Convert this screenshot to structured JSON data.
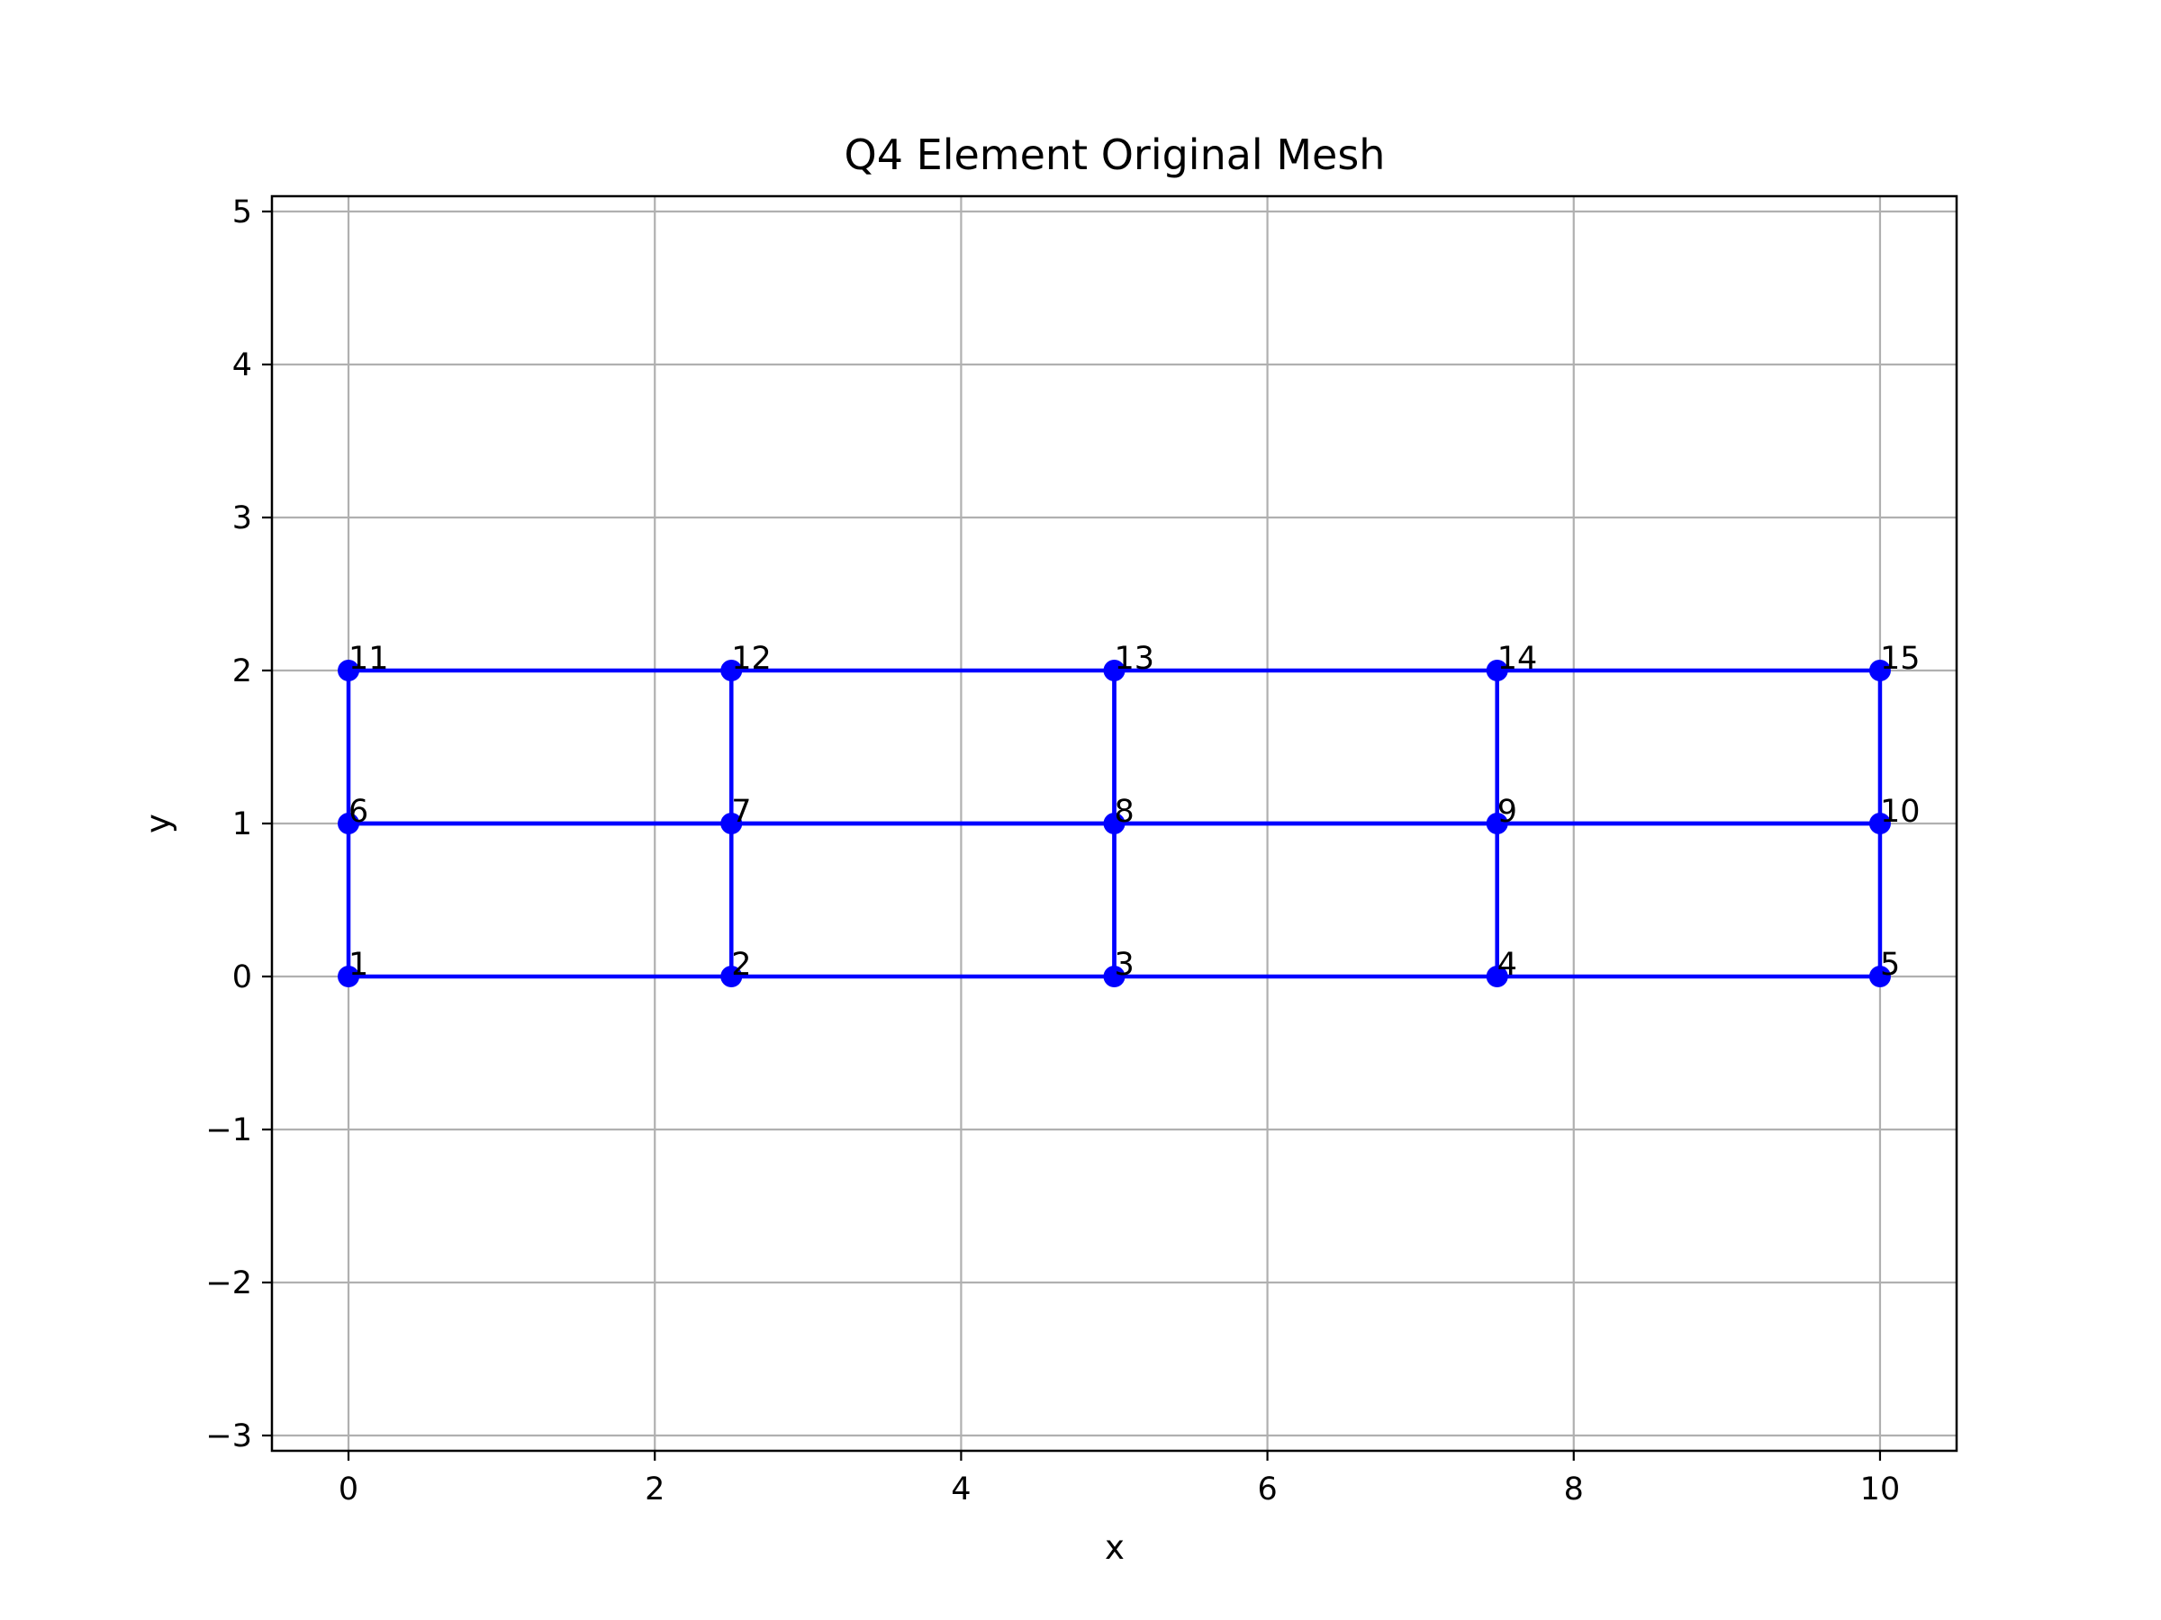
{
  "chart_data": {
    "type": "scatter",
    "title": "Q4 Element Original Mesh",
    "xlabel": "x",
    "ylabel": "y",
    "xlim": [
      -0.5,
      10.5
    ],
    "ylim": [
      -3.1,
      5.1
    ],
    "xticks": [
      0,
      2,
      4,
      6,
      8,
      10
    ],
    "yticks": [
      -3,
      -2,
      -1,
      0,
      1,
      2,
      3,
      4,
      5
    ],
    "xtick_labels": [
      "0",
      "2",
      "4",
      "6",
      "8",
      "10"
    ],
    "ytick_labels": [
      "−3",
      "−2",
      "−1",
      "0",
      "1",
      "2",
      "3",
      "4",
      "5"
    ],
    "grid": true,
    "color": "#0000ff",
    "nodes": [
      {
        "id": 1,
        "x": 0,
        "y": 0,
        "label": "1"
      },
      {
        "id": 2,
        "x": 2.5,
        "y": 0,
        "label": "2"
      },
      {
        "id": 3,
        "x": 5,
        "y": 0,
        "label": "3"
      },
      {
        "id": 4,
        "x": 7.5,
        "y": 0,
        "label": "4"
      },
      {
        "id": 5,
        "x": 10,
        "y": 0,
        "label": "5"
      },
      {
        "id": 6,
        "x": 0,
        "y": 1,
        "label": "6"
      },
      {
        "id": 7,
        "x": 2.5,
        "y": 1,
        "label": "7"
      },
      {
        "id": 8,
        "x": 5,
        "y": 1,
        "label": "8"
      },
      {
        "id": 9,
        "x": 7.5,
        "y": 1,
        "label": "9"
      },
      {
        "id": 10,
        "x": 10,
        "y": 1,
        "label": "10"
      },
      {
        "id": 11,
        "x": 0,
        "y": 2,
        "label": "11"
      },
      {
        "id": 12,
        "x": 2.5,
        "y": 2,
        "label": "12"
      },
      {
        "id": 13,
        "x": 5,
        "y": 2,
        "label": "13"
      },
      {
        "id": 14,
        "x": 7.5,
        "y": 2,
        "label": "14"
      },
      {
        "id": 15,
        "x": 10,
        "y": 2,
        "label": "15"
      }
    ],
    "elements": [
      [
        1,
        2,
        7,
        6
      ],
      [
        2,
        3,
        8,
        7
      ],
      [
        3,
        4,
        9,
        8
      ],
      [
        4,
        5,
        10,
        9
      ],
      [
        6,
        7,
        12,
        11
      ],
      [
        7,
        8,
        13,
        12
      ],
      [
        8,
        9,
        14,
        13
      ],
      [
        9,
        10,
        15,
        14
      ]
    ]
  }
}
